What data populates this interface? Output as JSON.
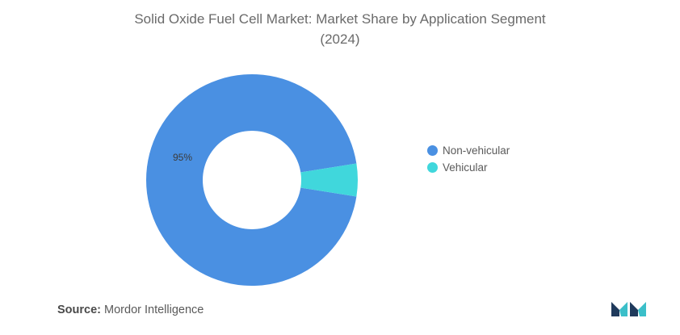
{
  "header": {
    "title_line1": "Solid Oxide Fuel Cell Market: Market Share by Application Segment",
    "title_line2": "(2024)"
  },
  "chart_data": {
    "type": "pie",
    "style": "donut",
    "title": "Solid Oxide Fuel Cell Market: Market Share by Application Segment (2024)",
    "categories": [
      "Non-vehicular",
      "Vehicular"
    ],
    "values": [
      95,
      5
    ],
    "unit": "%",
    "data_labels": [
      {
        "category": "Non-vehicular",
        "text": "95%"
      }
    ],
    "colors": [
      "#4a90e2",
      "#40d7dc"
    ],
    "legend_position": "right"
  },
  "legend": {
    "items": [
      {
        "label": "Non-vehicular",
        "color": "#4a90e2"
      },
      {
        "label": "Vehicular",
        "color": "#40d7dc"
      }
    ]
  },
  "footer": {
    "source_label": "Source:",
    "source_value": "Mordor Intelligence"
  },
  "logo": {
    "icon": "mordor-intelligence-logo-icon",
    "colors": [
      "#1f3a5c",
      "#3bbfc9"
    ]
  }
}
